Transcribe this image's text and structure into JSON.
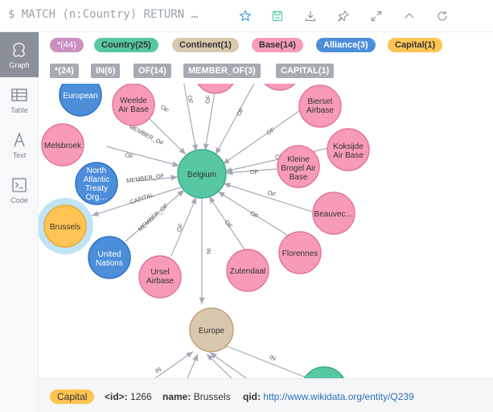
{
  "header": {
    "query": "$ MATCH (n:Country) RETURN …",
    "icons": [
      "star-icon",
      "save-icon",
      "download-icon",
      "pin-icon",
      "expand-icon",
      "collapse-icon",
      "rerun-icon"
    ]
  },
  "sidebar": {
    "items": [
      {
        "label": "Graph",
        "icon": "graph-icon",
        "active": true
      },
      {
        "label": "Table",
        "icon": "table-icon",
        "active": false
      },
      {
        "label": "Text",
        "icon": "text-icon",
        "active": false
      },
      {
        "label": "Code",
        "icon": "code-icon",
        "active": false
      }
    ]
  },
  "legend": {
    "labels": [
      {
        "text": "*(44)",
        "color": "#c990c0"
      },
      {
        "text": "Country(25)",
        "color": "#57c7a4"
      },
      {
        "text": "Continent(1)",
        "color": "#d9c8ae"
      },
      {
        "text": "Base(14)",
        "color": "#f79bb7"
      },
      {
        "text": "Alliance(3)",
        "color": "#4c8eda"
      },
      {
        "text": "Capital(1)",
        "color": "#ffc454"
      }
    ],
    "relationships": [
      {
        "text": "*(24)"
      },
      {
        "text": "IN(6)"
      },
      {
        "text": "OF(14)"
      },
      {
        "text": "MEMBER_OF(3)"
      },
      {
        "text": "CAPITAL(1)"
      }
    ]
  },
  "graph": {
    "nodes": {
      "belgium": "Belgium",
      "european": "European",
      "weelde": [
        "Weelde",
        "Air Base"
      ],
      "melsbroek": "Melsbroek",
      "nato": [
        "North",
        "Atlantic",
        "Treaty",
        "Org…"
      ],
      "brussels": "Brussels",
      "un": [
        "United",
        "Nations"
      ],
      "ursel": [
        "Ursel",
        "Airbase"
      ],
      "zutendaal": "Zutendaal",
      "florennes": "Florennes",
      "beauvec": "Beauvec…",
      "kleine": [
        "Kleine",
        "Brogel Air",
        "Base"
      ],
      "koksijde": [
        "Koksijde",
        "Air Base"
      ],
      "bierset": [
        "Bierset",
        "Airbase"
      ],
      "europe": "Europe"
    },
    "edges": {
      "of": "OF",
      "member_of": "MEMBER_OF",
      "capital": "CAPITAL",
      "in": "IN"
    }
  },
  "footer": {
    "badge": "Capital",
    "id_label": "<id>:",
    "id_value": "1266",
    "name_label": "name:",
    "name_value": "Brussels",
    "qid_label": "qid:",
    "qid_value": "http://www.wikidata.org/entity/Q239"
  }
}
